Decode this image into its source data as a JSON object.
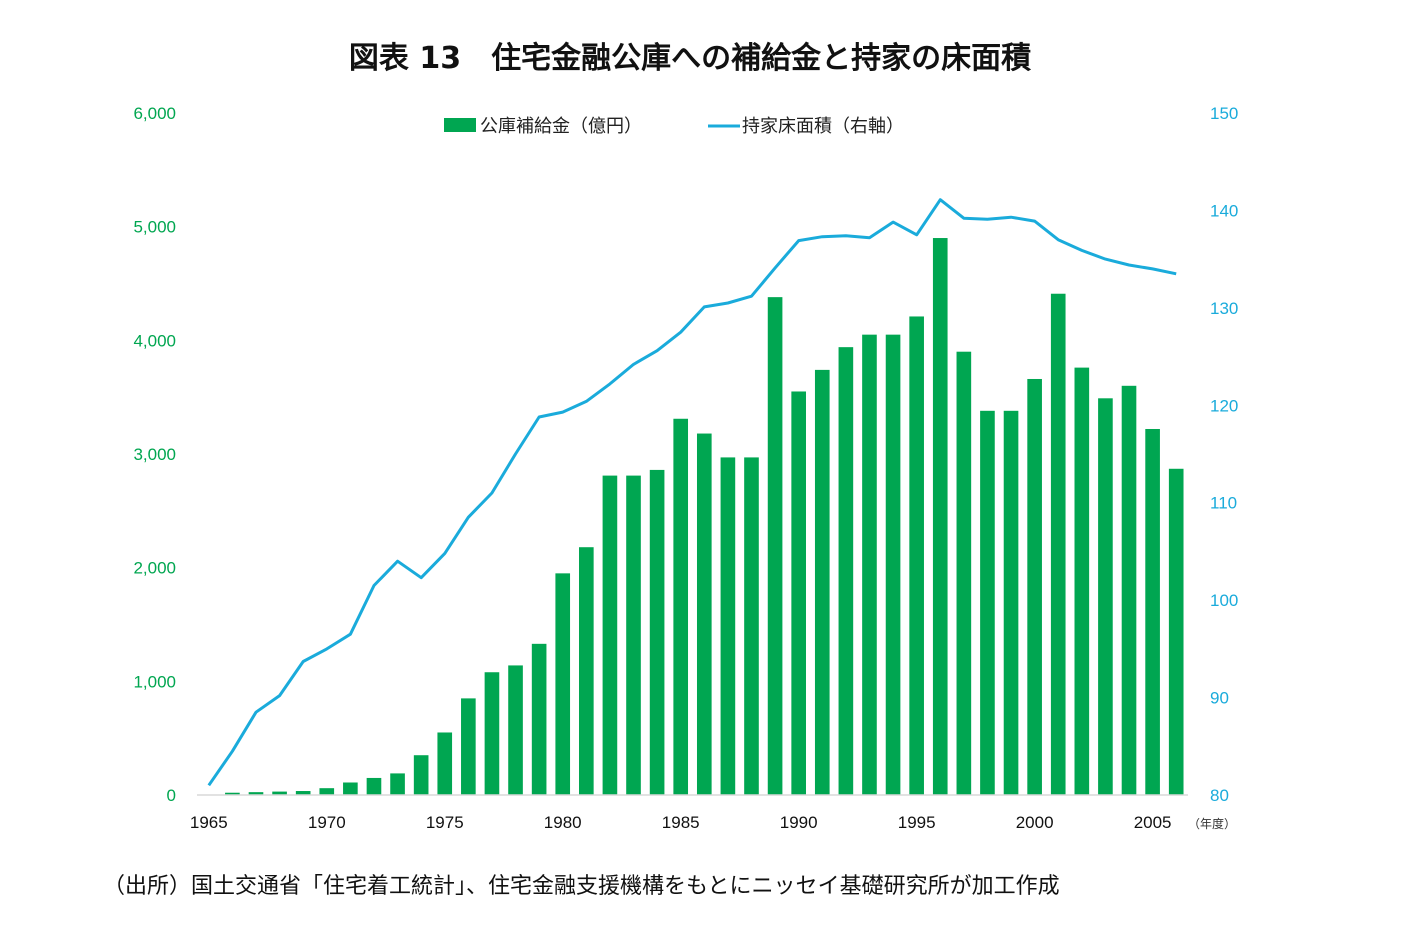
{
  "chart_data": {
    "type": "bar+line",
    "title": "図表 13　住宅金融公庫への補給金と持家の床面積",
    "source": "（出所）国土交通省「住宅着工統計」、住宅金融支援機構をもとにニッセイ基礎研究所が加工作成",
    "x_unit": "（年度）",
    "years": [
      1965,
      1966,
      1967,
      1968,
      1969,
      1970,
      1971,
      1972,
      1973,
      1974,
      1975,
      1976,
      1977,
      1978,
      1979,
      1980,
      1981,
      1982,
      1983,
      1984,
      1985,
      1986,
      1987,
      1988,
      1989,
      1990,
      1991,
      1992,
      1993,
      1994,
      1995,
      1996,
      1997,
      1998,
      1999,
      2000,
      2001,
      2002,
      2003,
      2004,
      2005,
      2006
    ],
    "x_tick_labels": [
      "1965",
      "1970",
      "1975",
      "1980",
      "1985",
      "1990",
      "1995",
      "2000",
      "2005"
    ],
    "left_axis": {
      "ylim": [
        0,
        6000
      ],
      "ticks": [
        "0",
        "1,000",
        "2,000",
        "3,000",
        "4,000",
        "5,000",
        "6,000"
      ],
      "color": "#00a650"
    },
    "right_axis": {
      "ylim": [
        80,
        150
      ],
      "ticks": [
        "80",
        "90",
        "100",
        "110",
        "120",
        "130",
        "140",
        "150"
      ],
      "color": "#1aabdb"
    },
    "series": [
      {
        "name": "公庫補給金（億円）",
        "type": "bar",
        "axis": "left",
        "color": "#00a651",
        "values": [
          0,
          20,
          25,
          30,
          35,
          60,
          110,
          150,
          190,
          350,
          550,
          850,
          1080,
          1140,
          1330,
          1950,
          2180,
          2810,
          2810,
          2860,
          3310,
          3180,
          2970,
          2970,
          4380,
          3550,
          3740,
          3940,
          4050,
          4050,
          4210,
          4900,
          3900,
          3380,
          3380,
          3660,
          4410,
          3760,
          3490,
          3600,
          3220,
          2870
        ]
      },
      {
        "name": "持家床面積（右軸）",
        "type": "line",
        "axis": "right",
        "color": "#1aabdb",
        "values": [
          81,
          84.5,
          88.5,
          90.2,
          93.7,
          95,
          96.5,
          101.5,
          104,
          102.3,
          104.8,
          108.5,
          111,
          115,
          118.8,
          119.3,
          120.4,
          122.2,
          124.2,
          125.6,
          127.5,
          130.1,
          130.5,
          131.2,
          134.1,
          136.9,
          137.3,
          137.4,
          137.2,
          138.8,
          137.5,
          141.1,
          139.2,
          139.1,
          139.3,
          138.9,
          137,
          135.9,
          135,
          134.4,
          134,
          133.5
        ]
      }
    ],
    "legend_position": "top-center",
    "grid": false
  }
}
